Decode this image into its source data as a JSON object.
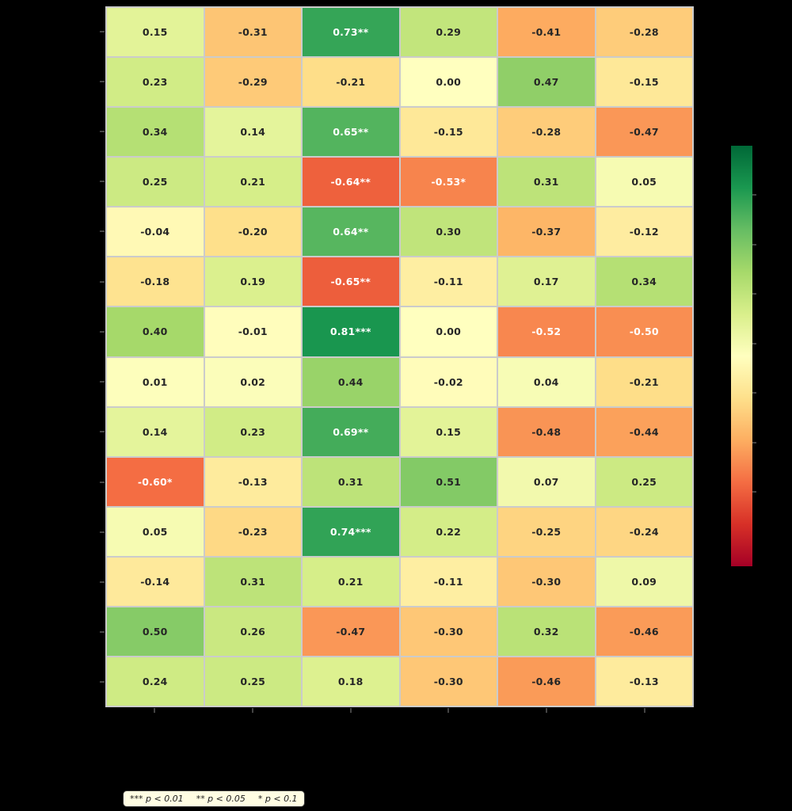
{
  "chart_data": {
    "type": "heatmap",
    "n_rows": 14,
    "n_cols": 6,
    "values": [
      [
        0.15,
        -0.31,
        0.73,
        0.29,
        -0.41,
        -0.28
      ],
      [
        0.23,
        -0.29,
        -0.21,
        0.0,
        0.47,
        -0.15
      ],
      [
        0.34,
        0.14,
        0.65,
        -0.15,
        -0.28,
        -0.47
      ],
      [
        0.25,
        0.21,
        -0.64,
        -0.53,
        0.31,
        0.05
      ],
      [
        -0.04,
        -0.2,
        0.64,
        0.3,
        -0.37,
        -0.12
      ],
      [
        -0.18,
        0.19,
        -0.65,
        -0.11,
        0.17,
        0.34
      ],
      [
        0.4,
        -0.01,
        0.81,
        0.0,
        -0.52,
        -0.5
      ],
      [
        0.01,
        0.02,
        0.44,
        -0.02,
        0.04,
        -0.21
      ],
      [
        0.14,
        0.23,
        0.69,
        0.15,
        -0.48,
        -0.44
      ],
      [
        -0.6,
        -0.13,
        0.31,
        0.51,
        0.07,
        0.25
      ],
      [
        0.05,
        -0.23,
        0.74,
        0.22,
        -0.25,
        -0.24
      ],
      [
        -0.14,
        0.31,
        0.21,
        -0.11,
        -0.3,
        0.09
      ],
      [
        0.5,
        0.26,
        -0.47,
        -0.3,
        0.32,
        -0.46
      ],
      [
        0.24,
        0.25,
        0.18,
        -0.3,
        -0.46,
        -0.13
      ]
    ],
    "labels": [
      [
        "0.15",
        "-0.31",
        "0.73**",
        "0.29",
        "-0.41",
        "-0.28"
      ],
      [
        "0.23",
        "-0.29",
        "-0.21",
        "0.00",
        "0.47",
        "-0.15"
      ],
      [
        "0.34",
        "0.14",
        "0.65**",
        "-0.15",
        "-0.28",
        "-0.47"
      ],
      [
        "0.25",
        "0.21",
        "-0.64**",
        "-0.53*",
        "0.31",
        "0.05"
      ],
      [
        "-0.04",
        "-0.20",
        "0.64**",
        "0.30",
        "-0.37",
        "-0.12"
      ],
      [
        "-0.18",
        "0.19",
        "-0.65**",
        "-0.11",
        "0.17",
        "0.34"
      ],
      [
        "0.40",
        "-0.01",
        "0.81***",
        "0.00",
        "-0.52",
        "-0.50"
      ],
      [
        "0.01",
        "0.02",
        "0.44",
        "-0.02",
        "0.04",
        "-0.21"
      ],
      [
        "0.14",
        "0.23",
        "0.69**",
        "0.15",
        "-0.48",
        "-0.44"
      ],
      [
        "-0.60*",
        "-0.13",
        "0.31",
        "0.51",
        "0.07",
        "0.25"
      ],
      [
        "0.05",
        "-0.23",
        "0.74***",
        "0.22",
        "-0.25",
        "-0.24"
      ],
      [
        "-0.14",
        "0.31",
        "0.21",
        "-0.11",
        "-0.30",
        "0.09"
      ],
      [
        "0.50",
        "0.26",
        "-0.47",
        "-0.30",
        "0.32",
        "-0.46"
      ],
      [
        "0.24",
        "0.25",
        "0.18",
        "-0.30",
        "-0.46",
        "-0.13"
      ]
    ],
    "vmin": -1,
    "vmax": 1,
    "colormap": {
      "name": "RdYlGn",
      "stops": [
        "#a50026",
        "#d73027",
        "#f46d43",
        "#fdae61",
        "#fee08b",
        "#ffffbf",
        "#d9ef8b",
        "#a6d96a",
        "#66bd63",
        "#1a9850",
        "#006837"
      ]
    },
    "colorbar": {
      "position": "right",
      "tick_count": 7
    },
    "legend_items": [
      "*** p < 0.01",
      "** p < 0.05",
      "* p < 0.1"
    ],
    "grid": true,
    "colors": {
      "background": "#000000",
      "grid_line": "#cbcbcb",
      "cell_text_dark": "#262626",
      "cell_text_light": "#ffffff",
      "tick": "#444444",
      "legend_bg": "#fffde3",
      "legend_border": "#333333",
      "legend_text": "#1a1a1a"
    }
  }
}
